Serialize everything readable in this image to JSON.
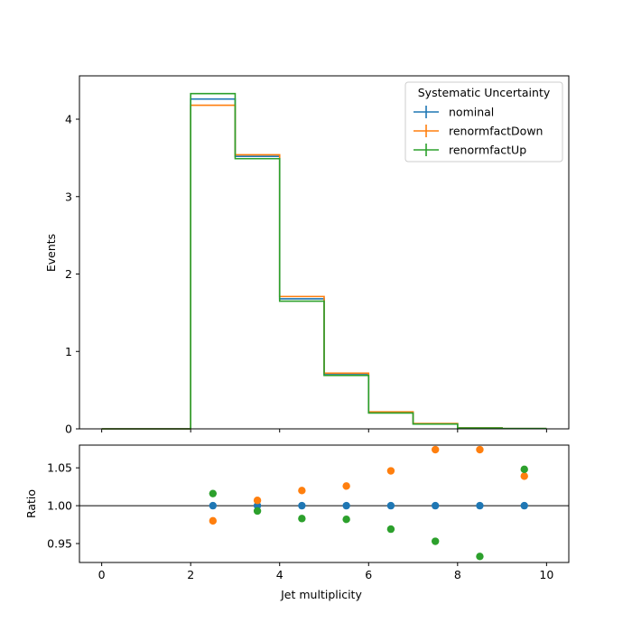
{
  "chart_data": [
    {
      "type": "step-histogram",
      "xlabel": "",
      "ylabel": "Events",
      "xlim": [
        -0.5,
        10.5
      ],
      "ylim": [
        0,
        4.56
      ],
      "bin_edges": [
        0,
        1,
        2,
        3,
        4,
        5,
        6,
        7,
        8,
        9,
        10
      ],
      "xticks": [
        "0",
        "2",
        "4",
        "6",
        "8",
        "10"
      ],
      "yticks": [
        "0",
        "1",
        "2",
        "3",
        "4"
      ],
      "legend": {
        "title": "Systematic Uncertainty",
        "position": "top-right"
      },
      "series": [
        {
          "name": "nominal",
          "color": "#1f77b4",
          "values": [
            0,
            0,
            4.26,
            3.52,
            1.68,
            0.7,
            0.21,
            0.065,
            0.012,
            0.004
          ]
        },
        {
          "name": "renormfactDown",
          "color": "#ff7f0e",
          "values": [
            0,
            0,
            4.18,
            3.54,
            1.71,
            0.72,
            0.22,
            0.07,
            0.013,
            0.004
          ]
        },
        {
          "name": "renormfactUp",
          "color": "#2ca02c",
          "values": [
            0,
            0,
            4.33,
            3.49,
            1.65,
            0.69,
            0.205,
            0.062,
            0.011,
            0.004
          ]
        }
      ]
    },
    {
      "type": "scatter",
      "xlabel": "Jet multiplicity",
      "ylabel": "Ratio",
      "xlim": [
        -0.5,
        10.5
      ],
      "ylim": [
        0.925,
        1.08
      ],
      "xticks": [
        "0",
        "2",
        "4",
        "6",
        "8",
        "10"
      ],
      "yticks": [
        "0.95",
        "1.00",
        "1.05"
      ],
      "reference_line": 1.0,
      "x": [
        2.5,
        3.5,
        4.5,
        5.5,
        6.5,
        7.5,
        8.5,
        9.5
      ],
      "series": [
        {
          "name": "nominal",
          "color": "#1f77b4",
          "values": [
            1.0,
            1.0,
            1.0,
            1.0,
            1.0,
            1.0,
            1.0,
            1.0
          ]
        },
        {
          "name": "renormfactDown",
          "color": "#ff7f0e",
          "values": [
            0.98,
            1.007,
            1.02,
            1.026,
            1.046,
            1.074,
            1.074,
            1.039
          ]
        },
        {
          "name": "renormfactUp",
          "color": "#2ca02c",
          "values": [
            1.016,
            0.993,
            0.983,
            0.982,
            0.969,
            0.953,
            0.933,
            1.048
          ]
        }
      ]
    }
  ]
}
